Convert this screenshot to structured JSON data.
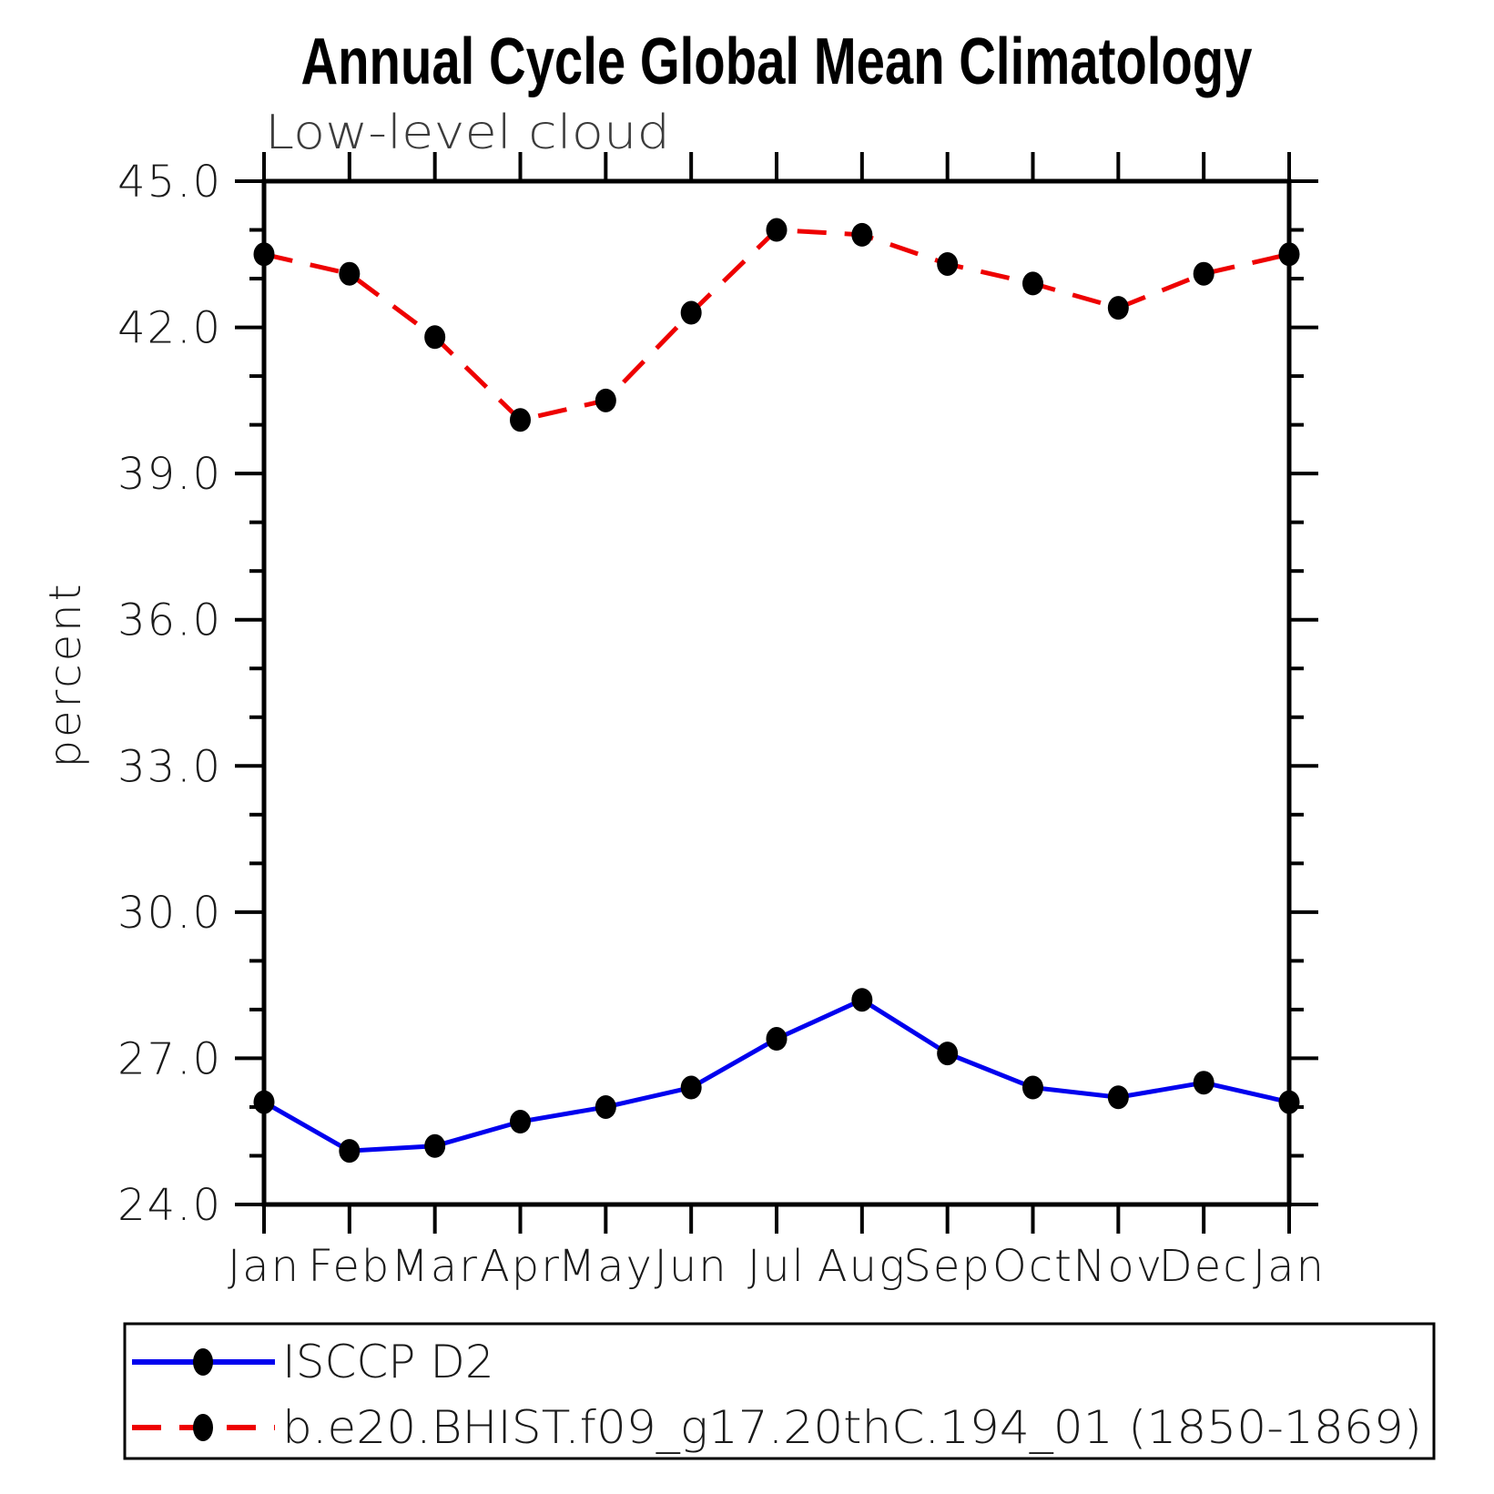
{
  "title": "Annual Cycle Global Mean Climatology",
  "subtitle": "Low-level cloud",
  "ylabel": "percent",
  "colors": {
    "isccp_line": "#0000ee",
    "model_line": "#ee0000",
    "marker": "#000000",
    "axis": "#000000"
  },
  "chart_data": {
    "type": "line",
    "title": "Annual Cycle Global Mean Climatology",
    "subtitle": "Low-level cloud",
    "xlabel": "",
    "ylabel": "percent",
    "x_categories": [
      "Jan",
      "Feb",
      "Mar",
      "Apr",
      "May",
      "Jun",
      "Jul",
      "Aug",
      "Sep",
      "Oct",
      "Nov",
      "Dec",
      "Jan"
    ],
    "ylim": [
      24.0,
      45.0
    ],
    "ytick_major": [
      24.0,
      27.0,
      30.0,
      33.0,
      36.0,
      39.0,
      42.0,
      45.0
    ],
    "ytick_major_labels": [
      "24.0",
      "27.0",
      "30.0",
      "33.0",
      "36.0",
      "39.0",
      "42.0",
      "45.0"
    ],
    "ytick_minor_step": 1.0,
    "grid": false,
    "legend_position": "bottom",
    "series": [
      {
        "name": "ISCCP D2",
        "color": "#0000ee",
        "style": "solid",
        "marker": "filled-circle",
        "marker_color": "#000000",
        "values": [
          26.1,
          25.1,
          25.2,
          25.7,
          26.0,
          26.4,
          27.4,
          28.2,
          27.1,
          26.4,
          26.2,
          26.5,
          26.1
        ]
      },
      {
        "name": "b.e20.BHIST.f09_g17.20thC.194_01 (1850-1869)",
        "color": "#ee0000",
        "style": "dashed",
        "marker": "filled-circle",
        "marker_color": "#000000",
        "values": [
          43.5,
          43.1,
          41.8,
          40.1,
          40.5,
          42.3,
          44.0,
          43.9,
          43.3,
          42.9,
          42.4,
          43.1,
          43.5
        ]
      }
    ]
  }
}
